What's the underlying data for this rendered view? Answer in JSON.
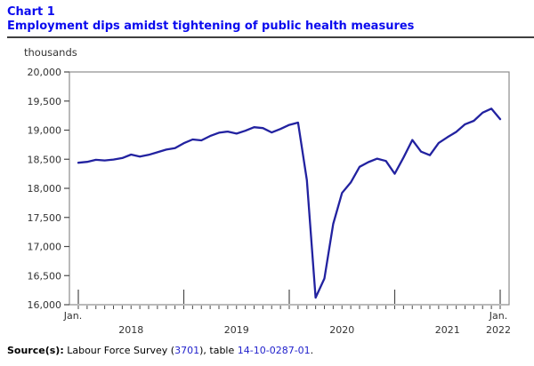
{
  "header": {
    "chart_label": "Chart 1",
    "title": "Employment dips amidst tightening of public health measures"
  },
  "chart_data": {
    "type": "line",
    "title": "Employment dips amidst tightening of public health measures",
    "unit_label": "thousands",
    "x_monthly_range": [
      "2018-01",
      "2022-01"
    ],
    "x_axis": {
      "first_tick_label": "Jan.",
      "last_tick_label": "Jan.",
      "year_labels": [
        "2018",
        "2019",
        "2020",
        "2021",
        "2022"
      ],
      "months_per_year_tick": 12
    },
    "ylim": [
      16000,
      20000
    ],
    "y_ticks": [
      16000,
      16500,
      17000,
      17500,
      18000,
      18500,
      19000,
      19500,
      20000
    ],
    "grid": false,
    "legend": false,
    "series": [
      {
        "name": "Employment",
        "color": "#2222a0",
        "values": [
          18440,
          18455,
          18490,
          18480,
          18495,
          18520,
          18580,
          18545,
          18575,
          18620,
          18665,
          18690,
          18775,
          18840,
          18825,
          18900,
          18955,
          18975,
          18940,
          18990,
          19050,
          19035,
          18960,
          19020,
          19090,
          19130,
          18140,
          16120,
          16450,
          17390,
          17920,
          18100,
          18370,
          18450,
          18510,
          18470,
          18250,
          18530,
          18830,
          18630,
          18570,
          18780,
          18880,
          18970,
          19100,
          19160,
          19300,
          19370,
          19190
        ]
      }
    ]
  },
  "source": {
    "prefix": "Source(s):",
    "before_link1": " Labour Force Survey (",
    "link1": "3701",
    "between_links": "), table ",
    "link2": "14-10-0287-01",
    "suffix": "."
  },
  "colors": {
    "title_blue": "#0b0bee",
    "line_navy": "#2222a0",
    "link_blue": "#2222cc",
    "frame_gray": "#8c8c8c",
    "tick_gray": "#4a4a4a",
    "label_gray": "#333333"
  }
}
